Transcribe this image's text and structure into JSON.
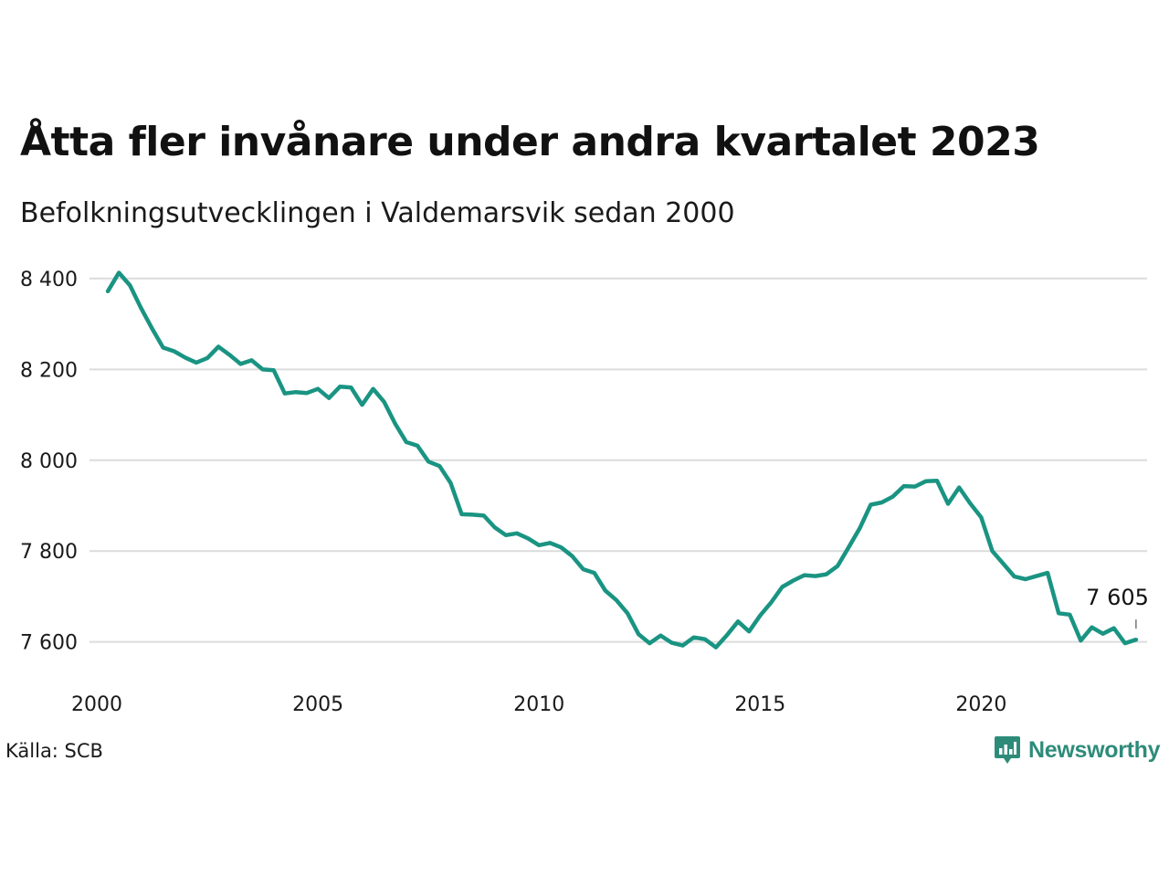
{
  "title": "Åtta fler invånare under andra kvartalet 2023",
  "subtitle": "Befolkningsutvecklingen i Valdemarsvik sedan 2000",
  "source": "Källa: SCB",
  "brand": "Newsworthy",
  "colors": {
    "line": "#1a9482",
    "grid": "#dcdcdc",
    "brand": "#2e8b7a"
  },
  "chart_data": {
    "type": "line",
    "title": "Åtta fler invånare under andra kvartalet 2023",
    "subtitle": "Befolkningsutvecklingen i Valdemarsvik sedan 2000",
    "xlabel": "",
    "ylabel": "",
    "xlim": [
      2000,
      2023.75
    ],
    "ylim": [
      7545,
      8430
    ],
    "grid": true,
    "legend": "none",
    "x_ticks": [
      {
        "value": 2000,
        "label": "2000"
      },
      {
        "value": 2005,
        "label": "2005"
      },
      {
        "value": 2010,
        "label": "2010"
      },
      {
        "value": 2015,
        "label": "2015"
      },
      {
        "value": 2020,
        "label": "2020"
      }
    ],
    "y_ticks": [
      {
        "value": 7600,
        "label": "7 600"
      },
      {
        "value": 7800,
        "label": "7 800"
      },
      {
        "value": 8000,
        "label": "8 000"
      },
      {
        "value": 8200,
        "label": "8 200"
      },
      {
        "value": 8400,
        "label": "8 400"
      }
    ],
    "x": [
      2000.25,
      2000.5,
      2000.75,
      2001.0,
      2001.25,
      2001.5,
      2001.75,
      2002.0,
      2002.25,
      2002.5,
      2002.75,
      2003.0,
      2003.25,
      2003.5,
      2003.75,
      2004.0,
      2004.25,
      2004.5,
      2004.75,
      2005.0,
      2005.25,
      2005.5,
      2005.75,
      2006.0,
      2006.25,
      2006.5,
      2006.75,
      2007.0,
      2007.25,
      2007.5,
      2007.75,
      2008.0,
      2008.25,
      2008.5,
      2008.75,
      2009.0,
      2009.25,
      2009.5,
      2009.75,
      2010.0,
      2010.25,
      2010.5,
      2010.75,
      2011.0,
      2011.25,
      2011.5,
      2011.75,
      2012.0,
      2012.25,
      2012.5,
      2012.75,
      2013.0,
      2013.25,
      2013.5,
      2013.75,
      2014.0,
      2014.25,
      2014.5,
      2014.75,
      2015.0,
      2015.25,
      2015.5,
      2015.75,
      2016.0,
      2016.25,
      2016.5,
      2016.75,
      2017.0,
      2017.25,
      2017.5,
      2017.75,
      2018.0,
      2018.25,
      2018.5,
      2018.75,
      2019.0,
      2019.25,
      2019.5,
      2019.75,
      2020.0,
      2020.25,
      2020.5,
      2020.75,
      2021.0,
      2021.25,
      2021.5,
      2021.75,
      2022.0,
      2022.25,
      2022.5,
      2022.75,
      2023.0,
      2023.25,
      2023.5
    ],
    "series": [
      {
        "values": [
          8372,
          8413,
          8385,
          8335,
          8290,
          8248,
          8240,
          8226,
          8215,
          8225,
          8250,
          8232,
          8212,
          8220,
          8200,
          8198,
          8147,
          8150,
          8148,
          8157,
          8137,
          8162,
          8160,
          8122,
          8157,
          8128,
          8080,
          8040,
          8032,
          7997,
          7987,
          7950,
          7881,
          7880,
          7878,
          7852,
          7835,
          7839,
          7828,
          7813,
          7818,
          7808,
          7789,
          7760,
          7752,
          7713,
          7692,
          7663,
          7617,
          7597,
          7614,
          7598,
          7592,
          7610,
          7606,
          7588,
          7615,
          7645,
          7623,
          7658,
          7687,
          7721,
          7735,
          7747,
          7745,
          7749,
          7767,
          7808,
          7850,
          7902,
          7907,
          7920,
          7943,
          7942,
          7954,
          7955,
          7904,
          7940,
          7905,
          7874,
          7800,
          7772,
          7744,
          7738,
          7745,
          7752,
          7663,
          7660,
          7603,
          7632,
          7618,
          7630,
          7597,
          7605
        ]
      }
    ],
    "annotations": [
      {
        "x": 2023.5,
        "y": 7605,
        "text": "7 605"
      }
    ]
  }
}
